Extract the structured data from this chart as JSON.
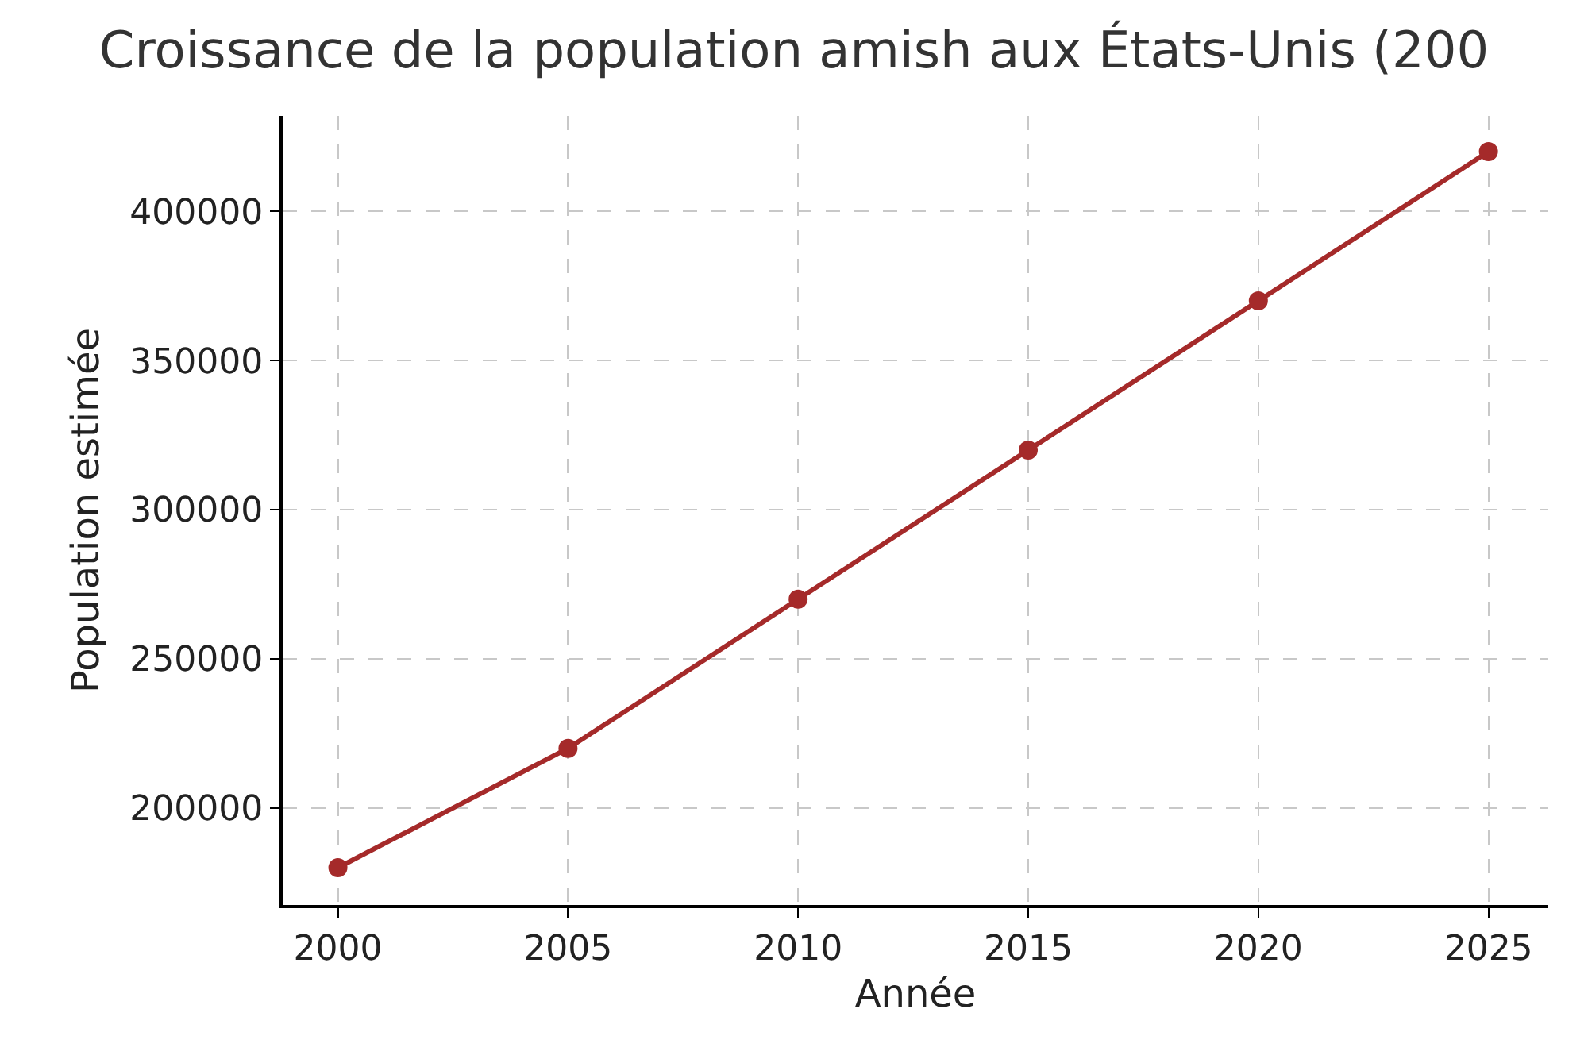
{
  "chart_data": {
    "type": "line",
    "title": "Croissance de la population amish aux États-Unis (200",
    "xlabel": "Année",
    "ylabel": "Population estimée",
    "x": [
      2000,
      2005,
      2010,
      2015,
      2020,
      2025
    ],
    "series": [
      {
        "color": "#a52a2a",
        "values": [
          180000,
          220000,
          270000,
          320000,
          370000,
          420000
        ]
      }
    ],
    "xlim": [
      1998.8,
      2026.3
    ],
    "xticks": [
      2000,
      2005,
      2010,
      2015,
      2020,
      2025
    ],
    "ylim": [
      167500,
      432000
    ],
    "yticks": [
      200000,
      250000,
      300000,
      350000,
      400000
    ],
    "grid": true,
    "marker": "circle",
    "line_style": "solid"
  }
}
